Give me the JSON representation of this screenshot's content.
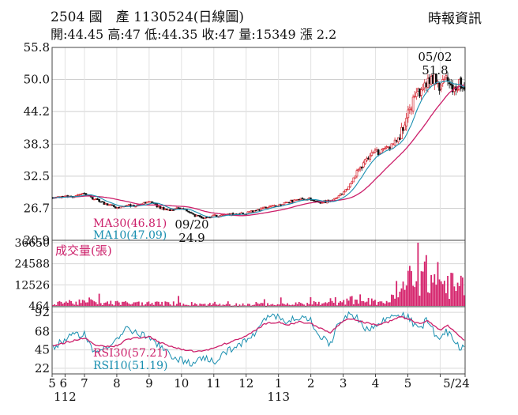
{
  "header": {
    "code": "2504",
    "name": "國　產",
    "date_type": "1130524(日線圖)",
    "publisher": "時報資訊",
    "quote": {
      "open_label": "開:",
      "open": "44.45",
      "high_label": "高:",
      "high": "47",
      "low_label": "低:",
      "low": "44.35",
      "close_label": "收:",
      "close": "47",
      "volume_label": "量:",
      "volume": "15349",
      "change_label": "漲",
      "change": "2.2"
    }
  },
  "chart_data": [
    {
      "type": "candlestick",
      "panel": "price",
      "y_ticks": [
        "55.8",
        "50.0",
        "44.2",
        "38.3",
        "32.5",
        "26.7",
        "20.9"
      ],
      "ylim": [
        20.9,
        55.8
      ],
      "x_ticks": [
        "5",
        "6",
        "7",
        "8",
        "9",
        "10",
        "11",
        "12",
        "1",
        "2",
        "3",
        "4",
        "5",
        "5/24"
      ],
      "x_year_labels": [
        {
          "label": "112",
          "at": "6"
        },
        {
          "label": "113",
          "at": "1"
        }
      ],
      "annotations": [
        {
          "label": "05/02",
          "value": "51.8",
          "kind": "high"
        },
        {
          "label": "09/20",
          "value": "24.9",
          "kind": "low"
        }
      ],
      "legend": [
        {
          "name": "MA30",
          "value": "46.81",
          "label": "MA30(46.81)",
          "color": "#cc1f6a"
        },
        {
          "name": "MA10",
          "value": "47.09",
          "label": "MA10(47.09)",
          "color": "#1a8fb0"
        }
      ],
      "path_months": [
        5.0,
        5.6,
        6.0,
        6.3,
        6.6,
        7.0,
        7.3,
        7.6,
        8.0,
        8.3,
        8.6,
        9.0,
        9.4,
        9.7,
        10.0,
        10.3,
        10.6,
        11.0,
        11.3,
        11.6,
        12.0,
        12.3,
        12.6,
        13.0,
        13.3,
        13.6,
        13.8,
        14.0,
        14.2,
        14.4,
        14.6,
        14.8,
        15.0,
        15.2,
        15.4,
        15.6,
        15.8,
        16.0,
        16.2,
        16.4,
        16.6,
        16.8,
        17.0,
        17.2,
        17.4,
        17.6,
        17.77
      ],
      "path_close": [
        28.6,
        28.8,
        29.3,
        28.4,
        27.6,
        26.8,
        27.3,
        27.1,
        28.0,
        26.9,
        26.3,
        26.8,
        25.4,
        25.0,
        25.3,
        25.5,
        25.6,
        25.8,
        26.3,
        26.8,
        27.2,
        27.8,
        28.3,
        28.4,
        27.8,
        28.0,
        28.7,
        29.5,
        30.8,
        32.8,
        34.6,
        36.0,
        36.8,
        37.0,
        37.6,
        38.6,
        40.5,
        43.8,
        46.5,
        48.2,
        49.6,
        50.3,
        48.6,
        50.4,
        47.4,
        49.2,
        47.0
      ]
    },
    {
      "type": "bar",
      "panel": "volume",
      "title": "成交量(張)",
      "y_ticks": [
        "36650",
        "24588",
        "12526",
        "464"
      ],
      "ylim": [
        464,
        36650
      ],
      "path_months": [
        5.0,
        6.0,
        7.0,
        8.0,
        9.0,
        10.0,
        11.0,
        12.0,
        13.0,
        14.0,
        14.2,
        14.4,
        14.6,
        14.8,
        15.0,
        15.4,
        15.8,
        16.0,
        16.3,
        16.6,
        16.9,
        17.2,
        17.5,
        17.77
      ],
      "path_volume": [
        3500,
        3000,
        2600,
        2400,
        2300,
        1700,
        1600,
        1800,
        2200,
        2800,
        4500,
        6000,
        5200,
        3800,
        3300,
        4000,
        9500,
        19000,
        24000,
        22000,
        17000,
        16000,
        14000,
        15349
      ]
    },
    {
      "type": "line",
      "panel": "rsi",
      "y_ticks": [
        "92",
        "68",
        "45",
        "22"
      ],
      "ylim": [
        15,
        99
      ],
      "legend": [
        {
          "name": "RSI30",
          "value": "57.21",
          "label": "RSI30(57.21)",
          "color": "#cc1f6a"
        },
        {
          "name": "RSI10",
          "value": "51.19",
          "label": "RSI10(51.19)",
          "color": "#1a8fb0"
        }
      ],
      "path_months": [
        5.0,
        5.6,
        6.0,
        6.3,
        6.6,
        7.0,
        7.3,
        7.6,
        8.0,
        8.3,
        8.6,
        9.0,
        9.4,
        9.7,
        10.0,
        10.3,
        10.6,
        11.0,
        11.3,
        11.6,
        12.0,
        12.3,
        12.6,
        13.0,
        13.3,
        13.6,
        13.8,
        14.0,
        14.2,
        14.4,
        14.6,
        14.8,
        15.0,
        15.2,
        15.4,
        15.6,
        15.8,
        16.0,
        16.2,
        16.4,
        16.6,
        16.8,
        17.0,
        17.2,
        17.4,
        17.6,
        17.77
      ],
      "path_rsi30": [
        50,
        56,
        60,
        52,
        49,
        50,
        58,
        60,
        62,
        55,
        50,
        46,
        43,
        44,
        47,
        52,
        56,
        62,
        70,
        78,
        80,
        76,
        80,
        78,
        72,
        66,
        74,
        80,
        84,
        82,
        80,
        78,
        76,
        78,
        80,
        84,
        86,
        84,
        80,
        78,
        82,
        76,
        70,
        76,
        70,
        62,
        57.21
      ],
      "path_rsi10": [
        48,
        62,
        66,
        40,
        48,
        58,
        72,
        66,
        60,
        50,
        40,
        32,
        28,
        36,
        30,
        40,
        48,
        56,
        66,
        84,
        88,
        80,
        86,
        82,
        62,
        50,
        76,
        84,
        92,
        86,
        74,
        72,
        74,
        80,
        86,
        88,
        90,
        86,
        76,
        72,
        84,
        68,
        56,
        68,
        60,
        46,
        51.19
      ]
    }
  ]
}
